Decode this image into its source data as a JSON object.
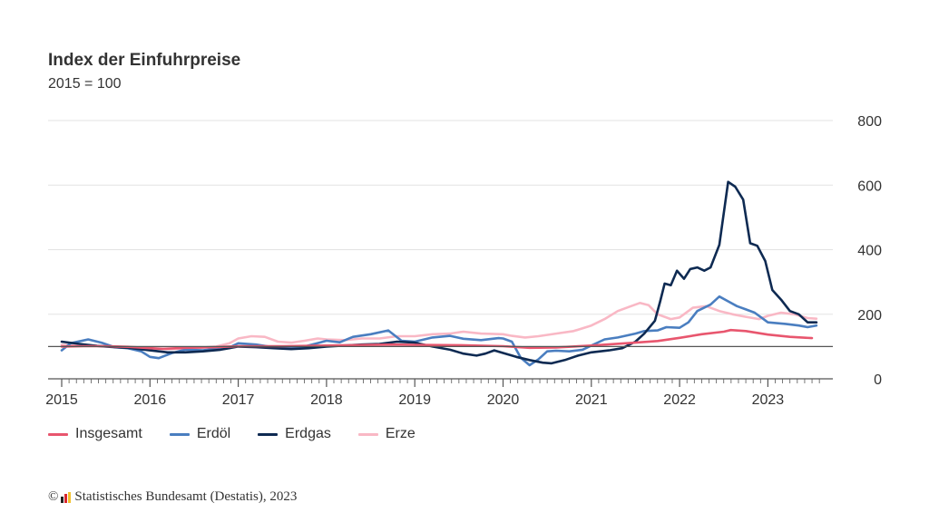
{
  "chart_data": {
    "type": "line",
    "title": "Index der Einfuhrpreise",
    "subtitle": "2015 = 100",
    "xlabel": "",
    "ylabel": "",
    "ylim": [
      0,
      800
    ],
    "y_ticks": [
      0,
      200,
      400,
      600,
      800
    ],
    "x_ticks": [
      "2015",
      "2016",
      "2017",
      "2018",
      "2019",
      "2020",
      "2021",
      "2022",
      "2023"
    ],
    "x_range": [
      2015.0,
      2023.6
    ],
    "grid": true,
    "reference_line": 100,
    "legend_position": "bottom-left",
    "series": [
      {
        "name": "Insgesamt",
        "color": "#e8566e",
        "points": [
          [
            2015.0,
            100
          ],
          [
            2015.25,
            101
          ],
          [
            2015.5,
            101
          ],
          [
            2015.75,
            99
          ],
          [
            2016.0,
            95
          ],
          [
            2016.15,
            93
          ],
          [
            2016.4,
            96
          ],
          [
            2016.75,
            98
          ],
          [
            2017.0,
            101
          ],
          [
            2017.5,
            101
          ],
          [
            2018.0,
            103
          ],
          [
            2018.5,
            105
          ],
          [
            2018.75,
            106
          ],
          [
            2019.0,
            105
          ],
          [
            2019.5,
            104
          ],
          [
            2020.0,
            101
          ],
          [
            2020.3,
            96
          ],
          [
            2020.6,
            97
          ],
          [
            2021.0,
            103
          ],
          [
            2021.5,
            112
          ],
          [
            2021.75,
            117
          ],
          [
            2022.0,
            127
          ],
          [
            2022.25,
            138
          ],
          [
            2022.5,
            146
          ],
          [
            2022.58,
            151
          ],
          [
            2022.75,
            148
          ],
          [
            2023.0,
            137
          ],
          [
            2023.25,
            130
          ],
          [
            2023.5,
            126
          ]
        ]
      },
      {
        "name": "Erdöl",
        "color": "#4a7ec0",
        "points": [
          [
            2015.0,
            88
          ],
          [
            2015.1,
            110
          ],
          [
            2015.3,
            122
          ],
          [
            2015.45,
            112
          ],
          [
            2015.6,
            98
          ],
          [
            2015.75,
            95
          ],
          [
            2015.9,
            85
          ],
          [
            2016.0,
            68
          ],
          [
            2016.1,
            64
          ],
          [
            2016.25,
            80
          ],
          [
            2016.4,
            90
          ],
          [
            2016.6,
            88
          ],
          [
            2016.75,
            93
          ],
          [
            2016.92,
            100
          ],
          [
            2017.0,
            110
          ],
          [
            2017.2,
            106
          ],
          [
            2017.4,
            98
          ],
          [
            2017.6,
            95
          ],
          [
            2017.75,
            100
          ],
          [
            2017.92,
            112
          ],
          [
            2018.0,
            118
          ],
          [
            2018.15,
            113
          ],
          [
            2018.3,
            130
          ],
          [
            2018.5,
            138
          ],
          [
            2018.7,
            150
          ],
          [
            2018.85,
            118
          ],
          [
            2019.0,
            115
          ],
          [
            2019.2,
            128
          ],
          [
            2019.4,
            133
          ],
          [
            2019.55,
            124
          ],
          [
            2019.75,
            120
          ],
          [
            2019.95,
            126
          ],
          [
            2020.0,
            125
          ],
          [
            2020.1,
            115
          ],
          [
            2020.2,
            65
          ],
          [
            2020.3,
            42
          ],
          [
            2020.4,
            60
          ],
          [
            2020.5,
            85
          ],
          [
            2020.6,
            87
          ],
          [
            2020.75,
            85
          ],
          [
            2020.9,
            90
          ],
          [
            2021.0,
            103
          ],
          [
            2021.15,
            122
          ],
          [
            2021.3,
            128
          ],
          [
            2021.5,
            140
          ],
          [
            2021.6,
            148
          ],
          [
            2021.75,
            150
          ],
          [
            2021.85,
            160
          ],
          [
            2022.0,
            158
          ],
          [
            2022.1,
            175
          ],
          [
            2022.2,
            210
          ],
          [
            2022.35,
            230
          ],
          [
            2022.45,
            255
          ],
          [
            2022.55,
            240
          ],
          [
            2022.65,
            225
          ],
          [
            2022.75,
            215
          ],
          [
            2022.85,
            205
          ],
          [
            2022.95,
            185
          ],
          [
            2023.0,
            175
          ],
          [
            2023.2,
            170
          ],
          [
            2023.35,
            165
          ],
          [
            2023.45,
            160
          ],
          [
            2023.55,
            165
          ]
        ]
      },
      {
        "name": "Erdgas",
        "color": "#0e2a52",
        "points": [
          [
            2015.0,
            115
          ],
          [
            2015.2,
            108
          ],
          [
            2015.4,
            102
          ],
          [
            2015.6,
            98
          ],
          [
            2015.8,
            95
          ],
          [
            2016.0,
            88
          ],
          [
            2016.2,
            82
          ],
          [
            2016.4,
            82
          ],
          [
            2016.6,
            85
          ],
          [
            2016.8,
            90
          ],
          [
            2017.0,
            100
          ],
          [
            2017.2,
            98
          ],
          [
            2017.4,
            95
          ],
          [
            2017.6,
            92
          ],
          [
            2017.8,
            95
          ],
          [
            2018.0,
            100
          ],
          [
            2018.2,
            103
          ],
          [
            2018.4,
            106
          ],
          [
            2018.6,
            108
          ],
          [
            2018.8,
            115
          ],
          [
            2019.0,
            112
          ],
          [
            2019.2,
            100
          ],
          [
            2019.4,
            90
          ],
          [
            2019.55,
            78
          ],
          [
            2019.7,
            72
          ],
          [
            2019.8,
            78
          ],
          [
            2019.9,
            88
          ],
          [
            2020.0,
            80
          ],
          [
            2020.15,
            68
          ],
          [
            2020.3,
            58
          ],
          [
            2020.45,
            50
          ],
          [
            2020.55,
            48
          ],
          [
            2020.7,
            58
          ],
          [
            2020.85,
            72
          ],
          [
            2021.0,
            82
          ],
          [
            2021.2,
            88
          ],
          [
            2021.35,
            95
          ],
          [
            2021.5,
            115
          ],
          [
            2021.6,
            140
          ],
          [
            2021.72,
            180
          ],
          [
            2021.78,
            240
          ],
          [
            2021.83,
            295
          ],
          [
            2021.9,
            290
          ],
          [
            2021.97,
            335
          ],
          [
            2022.05,
            310
          ],
          [
            2022.12,
            340
          ],
          [
            2022.2,
            345
          ],
          [
            2022.28,
            335
          ],
          [
            2022.35,
            345
          ],
          [
            2022.45,
            415
          ],
          [
            2022.55,
            610
          ],
          [
            2022.63,
            595
          ],
          [
            2022.72,
            555
          ],
          [
            2022.8,
            420
          ],
          [
            2022.88,
            412
          ],
          [
            2022.97,
            365
          ],
          [
            2023.05,
            275
          ],
          [
            2023.15,
            245
          ],
          [
            2023.25,
            210
          ],
          [
            2023.35,
            200
          ],
          [
            2023.45,
            175
          ],
          [
            2023.55,
            175
          ]
        ]
      },
      {
        "name": "Erze",
        "color": "#f9b8c5",
        "points": [
          [
            2015.0,
            105
          ],
          [
            2015.3,
            103
          ],
          [
            2015.6,
            100
          ],
          [
            2015.9,
            95
          ],
          [
            2016.2,
            92
          ],
          [
            2016.5,
            95
          ],
          [
            2016.75,
            100
          ],
          [
            2016.9,
            110
          ],
          [
            2017.0,
            125
          ],
          [
            2017.15,
            132
          ],
          [
            2017.3,
            130
          ],
          [
            2017.45,
            115
          ],
          [
            2017.6,
            112
          ],
          [
            2017.75,
            118
          ],
          [
            2017.9,
            125
          ],
          [
            2018.0,
            122
          ],
          [
            2018.2,
            120
          ],
          [
            2018.4,
            125
          ],
          [
            2018.6,
            125
          ],
          [
            2018.8,
            132
          ],
          [
            2019.0,
            132
          ],
          [
            2019.2,
            138
          ],
          [
            2019.4,
            140
          ],
          [
            2019.55,
            146
          ],
          [
            2019.75,
            140
          ],
          [
            2020.0,
            138
          ],
          [
            2020.1,
            133
          ],
          [
            2020.25,
            128
          ],
          [
            2020.4,
            132
          ],
          [
            2020.6,
            140
          ],
          [
            2020.8,
            148
          ],
          [
            2021.0,
            165
          ],
          [
            2021.15,
            185
          ],
          [
            2021.3,
            210
          ],
          [
            2021.45,
            225
          ],
          [
            2021.55,
            235
          ],
          [
            2021.65,
            228
          ],
          [
            2021.75,
            200
          ],
          [
            2021.9,
            185
          ],
          [
            2022.0,
            190
          ],
          [
            2022.15,
            220
          ],
          [
            2022.3,
            225
          ],
          [
            2022.45,
            210
          ],
          [
            2022.6,
            200
          ],
          [
            2022.75,
            192
          ],
          [
            2022.9,
            185
          ],
          [
            2023.0,
            195
          ],
          [
            2023.15,
            205
          ],
          [
            2023.3,
            200
          ],
          [
            2023.45,
            188
          ],
          [
            2023.55,
            186
          ]
        ]
      }
    ]
  },
  "legend": [
    "Insgesamt",
    "Erdöl",
    "Erdgas",
    "Erze"
  ],
  "footer": {
    "copyright": "©",
    "source": "Statistisches Bundesamt (Destatis), 2023",
    "logo_colors": [
      "#222222",
      "#d8262e",
      "#f2c12e"
    ]
  }
}
